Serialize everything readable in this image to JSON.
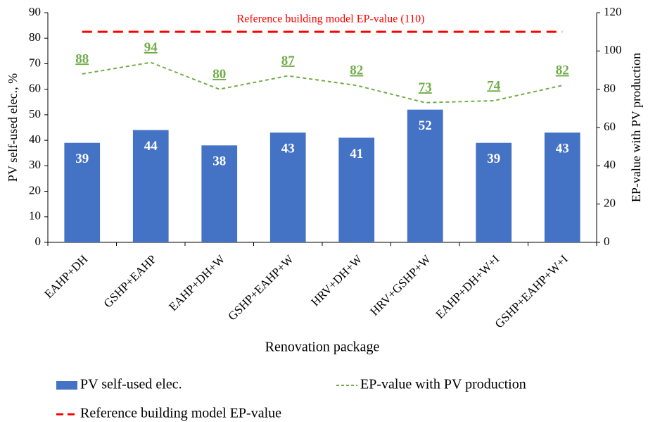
{
  "chart_data": {
    "type": "bar",
    "annotation": "Reference building model EP-value (110)",
    "xlabel": "Renovation package",
    "ylabel": "PV self-used elec., %",
    "y2label": "EP-value with PV production",
    "categories": [
      "EAHP+DH",
      "GSHP+EAHP",
      "EAHP+DH+W",
      "GSHP+EAHP+W",
      "HRV+DH+W",
      "HRV+GSHP+W",
      "EAHP+DH+W+I",
      "GSHP+EAHP+W+I"
    ],
    "series": [
      {
        "name": "PV self-used elec.",
        "type": "bar",
        "color": "#4472c4",
        "values": [
          39,
          44,
          38,
          43,
          41,
          52,
          39,
          43
        ]
      },
      {
        "name": "EP-value with PV production",
        "type": "line",
        "linestyle": "dashed",
        "axis": "y2",
        "color": "#70ad47",
        "values": [
          88,
          94,
          80,
          87,
          82,
          73,
          74,
          82
        ]
      },
      {
        "name": "Reference building model EP-value",
        "type": "line",
        "linestyle": "longdash",
        "axis": "y2",
        "color": "#ff0000",
        "values": [
          110,
          110,
          110,
          110,
          110,
          110,
          110,
          110
        ]
      }
    ],
    "ylim": [
      0,
      90
    ],
    "yticks": [
      0,
      10,
      20,
      30,
      40,
      50,
      60,
      70,
      80,
      90
    ],
    "y2lim": [
      0,
      120
    ],
    "y2ticks": [
      0,
      20,
      40,
      60,
      80,
      100,
      120
    ],
    "grid": false,
    "legend": "bottom"
  }
}
